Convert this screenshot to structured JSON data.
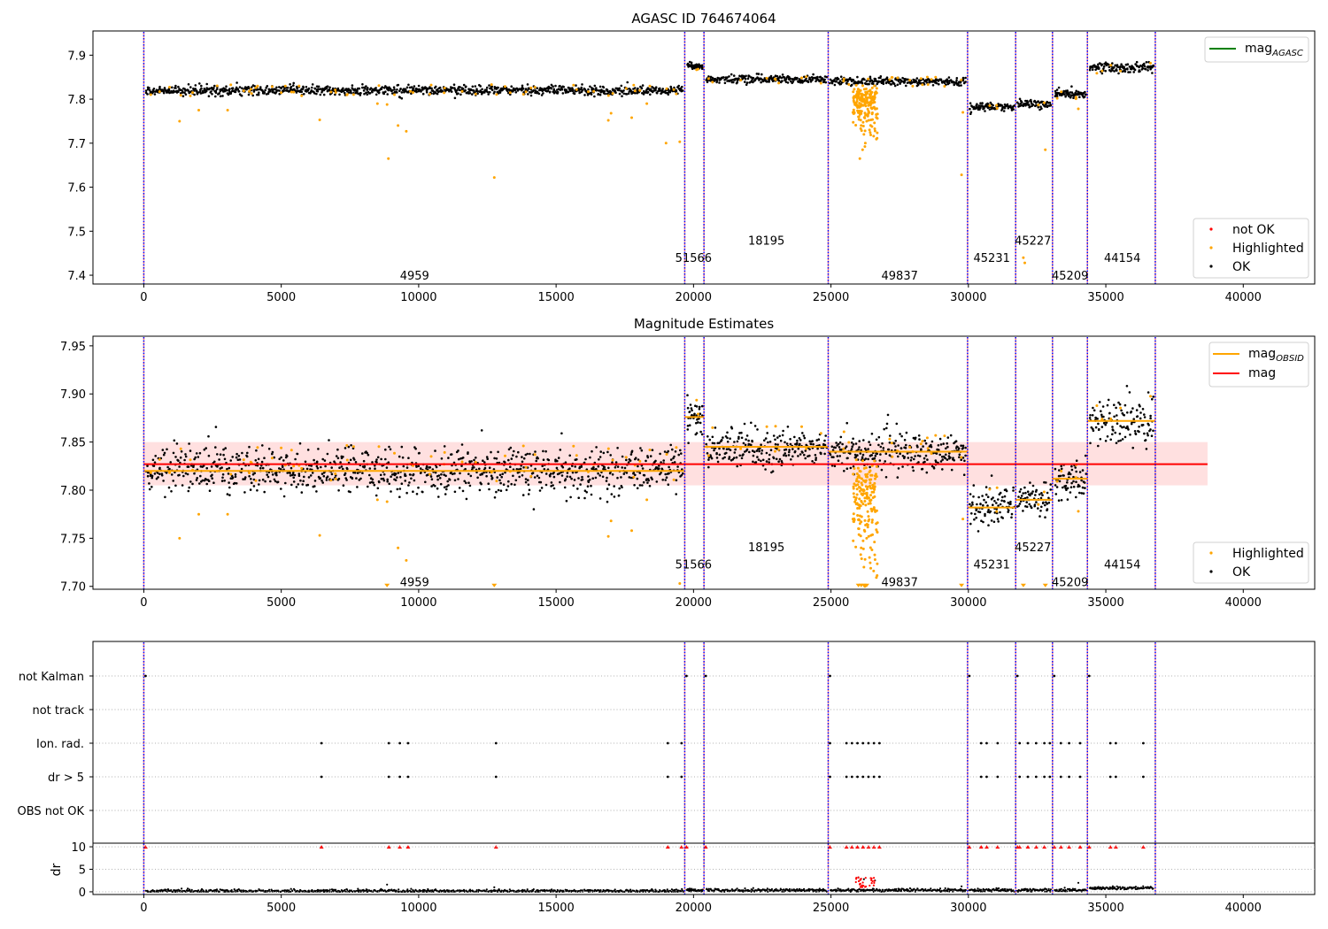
{
  "chart_data": [
    {
      "type": "scatter",
      "title": "AGASC ID 764674064",
      "xlim": [
        -1850,
        42600
      ],
      "ylim": [
        7.38,
        7.955
      ],
      "x_ticks": [
        0,
        5000,
        10000,
        15000,
        20000,
        25000,
        30000,
        35000,
        40000
      ],
      "x_tick_labels": [
        "0",
        "5000",
        "10000",
        "15000",
        "20000",
        "25000",
        "30000",
        "35000",
        "40000"
      ],
      "y_ticks": [
        7.4,
        7.5,
        7.6,
        7.7,
        7.8,
        7.9
      ],
      "y_tick_labels": [
        "7.4",
        "7.5",
        "7.6",
        "7.7",
        "7.8",
        "7.9"
      ],
      "obs_boundaries": [
        0,
        19680,
        20380,
        24900,
        29970,
        31720,
        33060,
        34330,
        36800
      ],
      "obs_segments": [
        {
          "obsid": "4959",
          "x0": 0,
          "x1": 19680,
          "level": 7.82,
          "spread": 0.012
        },
        {
          "obsid": "51566",
          "x0": 19680,
          "x1": 20380,
          "level": 7.876,
          "spread": 0.009
        },
        {
          "obsid": "18195",
          "x0": 20380,
          "x1": 24900,
          "level": 7.845,
          "spread": 0.01
        },
        {
          "obsid": "49837",
          "x0": 24900,
          "x1": 29970,
          "level": 7.84,
          "spread": 0.01
        },
        {
          "obsid": "45231",
          "x0": 29970,
          "x1": 31720,
          "level": 7.782,
          "spread": 0.01
        },
        {
          "obsid": "45227",
          "x0": 31720,
          "x1": 33060,
          "level": 7.79,
          "spread": 0.01
        },
        {
          "obsid": "45209",
          "x0": 33060,
          "x1": 34330,
          "level": 7.812,
          "spread": 0.01
        },
        {
          "obsid": "44154",
          "x0": 34330,
          "x1": 36800,
          "level": 7.872,
          "spread": 0.013
        }
      ],
      "obs_labels": [
        {
          "text": "4959",
          "x": 9850,
          "y": 7.4
        },
        {
          "text": "51566",
          "x": 20000,
          "y": 7.44
        },
        {
          "text": "18195",
          "x": 22650,
          "y": 7.48
        },
        {
          "text": "49837",
          "x": 27500,
          "y": 7.4
        },
        {
          "text": "45231",
          "x": 30850,
          "y": 7.44
        },
        {
          "text": "45227",
          "x": 32350,
          "y": 7.48
        },
        {
          "text": "45209",
          "x": 33700,
          "y": 7.4
        },
        {
          "text": "44154",
          "x": 35600,
          "y": 7.44
        }
      ],
      "highlighted_outliers": [
        {
          "x": 1300,
          "y": 7.75
        },
        {
          "x": 2000,
          "y": 7.775
        },
        {
          "x": 3050,
          "y": 7.775
        },
        {
          "x": 6400,
          "y": 7.753
        },
        {
          "x": 8500,
          "y": 7.79
        },
        {
          "x": 8850,
          "y": 7.788
        },
        {
          "x": 8900,
          "y": 7.665
        },
        {
          "x": 9250,
          "y": 7.74
        },
        {
          "x": 9550,
          "y": 7.727
        },
        {
          "x": 12750,
          "y": 7.622
        },
        {
          "x": 16900,
          "y": 7.752
        },
        {
          "x": 17000,
          "y": 7.768
        },
        {
          "x": 17750,
          "y": 7.758
        },
        {
          "x": 18300,
          "y": 7.79
        },
        {
          "x": 19000,
          "y": 7.7
        },
        {
          "x": 19500,
          "y": 7.703
        },
        {
          "x": 25900,
          "y": 7.79
        },
        {
          "x": 26000,
          "y": 7.76
        },
        {
          "x": 26100,
          "y": 7.74
        },
        {
          "x": 26200,
          "y": 7.72
        },
        {
          "x": 26250,
          "y": 7.7
        },
        {
          "x": 26150,
          "y": 7.685
        },
        {
          "x": 26050,
          "y": 7.665
        },
        {
          "x": 26300,
          "y": 7.75
        },
        {
          "x": 26400,
          "y": 7.73
        },
        {
          "x": 26500,
          "y": 7.78
        },
        {
          "x": 25800,
          "y": 7.77
        },
        {
          "x": 29800,
          "y": 7.77
        },
        {
          "x": 29750,
          "y": 7.628
        },
        {
          "x": 32000,
          "y": 7.44
        },
        {
          "x": 32050,
          "y": 7.428
        },
        {
          "x": 32800,
          "y": 7.685
        },
        {
          "x": 34000,
          "y": 7.778
        }
      ],
      "legend_upper": [
        {
          "label": "mag",
          "subscript": "AGASC",
          "color": "#008000",
          "marker": "line"
        }
      ],
      "legend_lower": [
        {
          "label": "not OK",
          "color": "#ff0000",
          "marker": "dot"
        },
        {
          "label": "Highlighted",
          "color": "#ffa500",
          "marker": "dot"
        },
        {
          "label": "OK",
          "color": "#000000",
          "marker": "dot"
        }
      ]
    },
    {
      "type": "scatter",
      "title": "Magnitude Estimates",
      "xlim": [
        -1850,
        42600
      ],
      "ylim": [
        7.697,
        7.96
      ],
      "x_ticks": [
        0,
        5000,
        10000,
        15000,
        20000,
        25000,
        30000,
        35000,
        40000
      ],
      "x_tick_labels": [
        "0",
        "5000",
        "10000",
        "15000",
        "20000",
        "25000",
        "30000",
        "35000",
        "40000"
      ],
      "y_ticks": [
        7.7,
        7.75,
        7.8,
        7.85,
        7.9,
        7.95
      ],
      "y_tick_labels": [
        "7.70",
        "7.75",
        "7.80",
        "7.85",
        "7.90",
        "7.95"
      ],
      "mag_line": {
        "value": 7.827,
        "x0": 0,
        "x1": 38700
      },
      "mag_band": {
        "low": 7.805,
        "high": 7.85,
        "x0": 0,
        "x1": 38700
      },
      "obs_labels": [
        {
          "text": "4959",
          "x": 9850,
          "y": 7.705
        },
        {
          "text": "51566",
          "x": 20000,
          "y": 7.723
        },
        {
          "text": "18195",
          "x": 22650,
          "y": 7.741
        },
        {
          "text": "49837",
          "x": 27500,
          "y": 7.705
        },
        {
          "text": "45231",
          "x": 30850,
          "y": 7.723
        },
        {
          "text": "45227",
          "x": 32350,
          "y": 7.741
        },
        {
          "text": "45209",
          "x": 33700,
          "y": 7.705
        },
        {
          "text": "44154",
          "x": 35600,
          "y": 7.723
        }
      ],
      "clipped_markers": [
        8850,
        12750,
        26000,
        26100,
        26200,
        26300,
        29750,
        32000,
        32800
      ],
      "legend_upper": [
        {
          "label": "mag",
          "subscript": "OBSID",
          "color": "#ffa500",
          "marker": "line"
        },
        {
          "label": "mag",
          "subscript": "",
          "color": "#ff0000",
          "marker": "line"
        }
      ],
      "legend_lower": [
        {
          "label": "Highlighted",
          "color": "#ffa500",
          "marker": "dot"
        },
        {
          "label": "OK",
          "color": "#000000",
          "marker": "dot"
        }
      ]
    },
    {
      "type": "scatter",
      "title": "",
      "xlim": [
        -1850,
        42600
      ],
      "x_ticks": [
        0,
        5000,
        10000,
        15000,
        20000,
        25000,
        30000,
        35000,
        40000
      ],
      "x_tick_labels": [
        "0",
        "5000",
        "10000",
        "15000",
        "20000",
        "25000",
        "30000",
        "35000",
        "40000"
      ],
      "flag_rows": [
        "not Kalman",
        "not track",
        "Ion. rad.",
        "dr > 5",
        "OBS not OK"
      ],
      "flag_points": {
        "not Kalman": [
          0,
          19680,
          20380,
          24900,
          29970,
          31720,
          33060,
          34330
        ],
        "not track": [],
        "Ion. rad.": [
          6400,
          8850,
          9250,
          9550,
          12750,
          19000,
          19500,
          24900,
          25500,
          25700,
          25900,
          26100,
          26300,
          26500,
          26700,
          30400,
          30600,
          31000,
          31800,
          32100,
          32400,
          32700,
          32900,
          33300,
          33600,
          34000,
          35100,
          35300,
          36300
        ],
        "dr > 5": [
          6400,
          8850,
          9250,
          9550,
          12750,
          19000,
          19500,
          24900,
          25500,
          25700,
          25900,
          26100,
          26300,
          26500,
          26700,
          30400,
          30600,
          31000,
          31800,
          32100,
          32400,
          32700,
          32900,
          33300,
          33600,
          34000,
          35100,
          35300,
          36300
        ],
        "OBS not OK": []
      },
      "dr_ylabel": "dr",
      "dr_ylim": [
        -0.6,
        10.8
      ],
      "dr_y_ticks": [
        0,
        5,
        10
      ],
      "dr_y_tick_labels": [
        "0",
        "5",
        "10"
      ],
      "dr_clipped": [
        0,
        6400,
        8850,
        9250,
        9550,
        12750,
        19000,
        19500,
        19680,
        20380,
        24900,
        25500,
        25700,
        25900,
        26100,
        26300,
        26500,
        26700,
        29970,
        30400,
        30600,
        31000,
        31720,
        31800,
        32100,
        32400,
        32700,
        33060,
        33300,
        33600,
        34000,
        34330,
        35100,
        35300,
        36300
      ],
      "dr_spikes": [
        {
          "x": 8850,
          "y": 1.6
        },
        {
          "x": 12750,
          "y": 1.0
        },
        {
          "x": 26000,
          "y": 3.2
        },
        {
          "x": 26200,
          "y": 2.8
        },
        {
          "x": 26600,
          "y": 2.5
        },
        {
          "x": 29750,
          "y": 1.2
        },
        {
          "x": 34000,
          "y": 2.0
        }
      ]
    }
  ]
}
